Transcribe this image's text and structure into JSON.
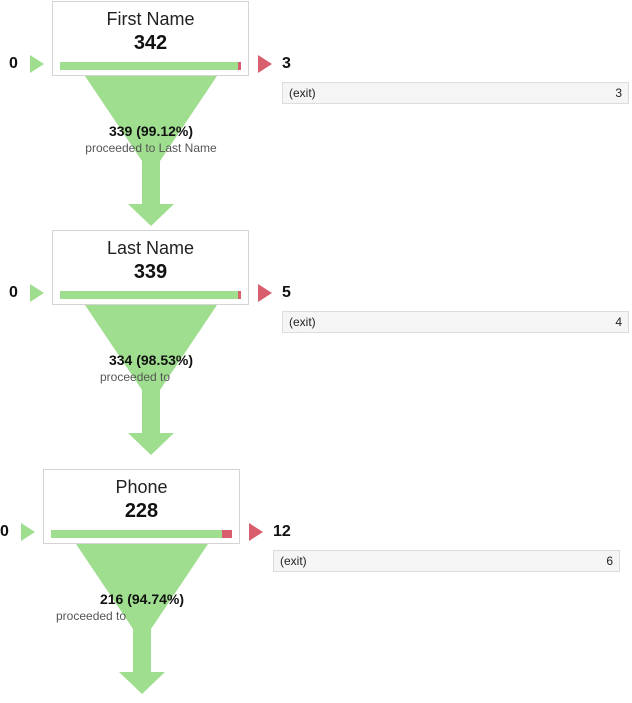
{
  "colors": {
    "proceed_green": "#9ede8e",
    "exit_red": "#d95e6e",
    "border": "#d4d4d4"
  },
  "steps": [
    {
      "name": "First Name",
      "count": "342",
      "entrances": "0",
      "exits": "3",
      "exit_rows": [
        {
          "label": "(exit)",
          "value": "3"
        }
      ],
      "proceeded_count": "339 (99.12%)",
      "proceeded_text": "proceeded to Last Name",
      "exit_share": 0.0088
    },
    {
      "name": "Last Name",
      "count": "339",
      "entrances": "0",
      "exits": "5",
      "exit_rows": [
        {
          "label": "(exit)",
          "value": "4"
        }
      ],
      "proceeded_count": "334 (98.53%)",
      "proceeded_text": "proceeded to",
      "exit_share": 0.0147
    },
    {
      "name": "Phone",
      "count": "228",
      "entrances": "0",
      "exits": "12",
      "exit_rows": [
        {
          "label": "(exit)",
          "value": "6"
        }
      ],
      "proceeded_count": "216 (94.74%)",
      "proceeded_text": "proceeded to",
      "exit_share": 0.0526
    }
  ]
}
